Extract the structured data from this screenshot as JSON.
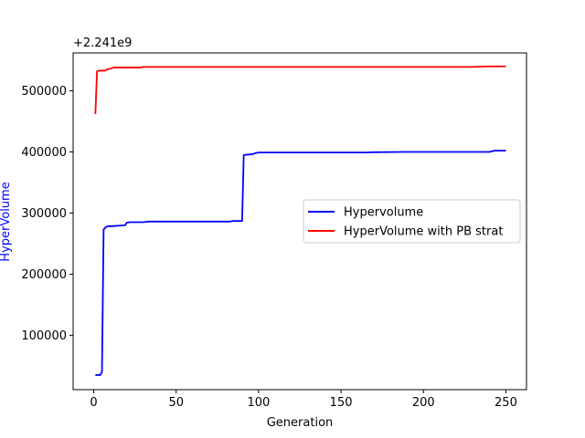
{
  "chart_data": {
    "type": "line",
    "xlabel": "Generation",
    "ylabel": "HyperVolume",
    "ylabel_color": "#0000ff",
    "offset_label": "+2.241e9",
    "xlim": [
      -12.5,
      262.5
    ],
    "ylim": [
      11000,
      562000
    ],
    "xticks": [
      0,
      50,
      100,
      150,
      200,
      250
    ],
    "yticks": [
      100000,
      200000,
      300000,
      400000,
      500000
    ],
    "ytick_labels": [
      "100000",
      "200000",
      "300000",
      "400000",
      "500000"
    ],
    "legend_position": "center-right",
    "series": [
      {
        "name": "Hypervolume",
        "color": "#0000ff",
        "x": [
          1,
          4,
          5,
          6,
          7,
          8,
          19,
          20,
          22,
          30,
          33,
          83,
          84,
          90,
          91,
          95,
          96,
          98,
          100,
          165,
          170,
          188,
          240,
          243,
          250
        ],
        "y": [
          35000,
          35000,
          40000,
          273000,
          276000,
          278000,
          280000,
          284000,
          285000,
          285000,
          286000,
          286000,
          287000,
          287000,
          395000,
          396000,
          396000,
          398000,
          399000,
          399000,
          399500,
          400000,
          400000,
          402000,
          402000
        ]
      },
      {
        "name": "HyperVolume with PB strat",
        "color": "#ff0000",
        "x": [
          1,
          2,
          3,
          7,
          8,
          10,
          12,
          15,
          28,
          30,
          228,
          240,
          250
        ],
        "y": [
          462000,
          532000,
          533000,
          533000,
          535000,
          536000,
          538000,
          538000,
          538000,
          539000,
          539000,
          540000,
          540000
        ]
      }
    ]
  }
}
